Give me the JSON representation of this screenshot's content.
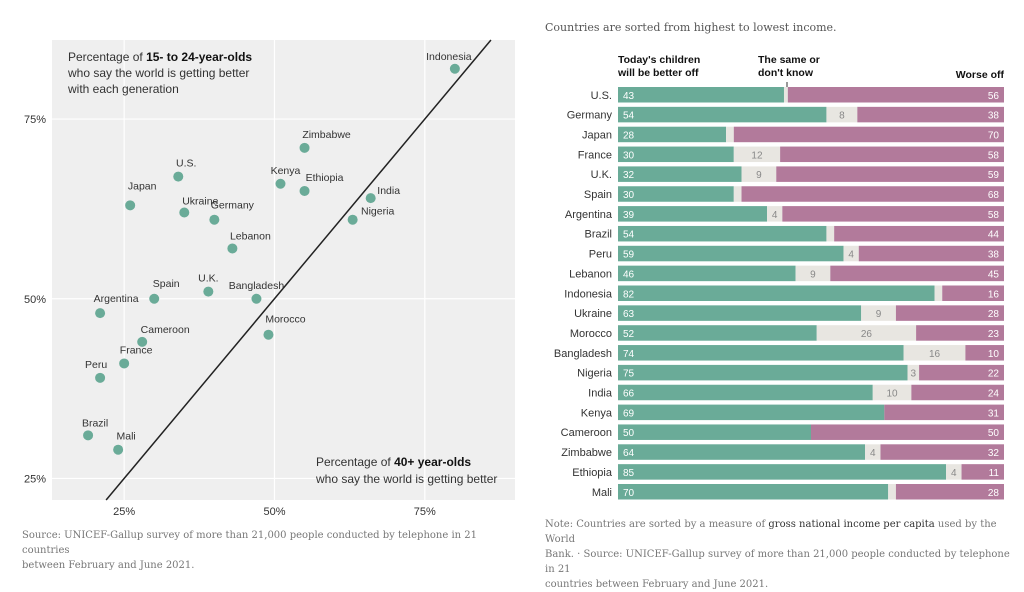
{
  "scatter": {
    "annotation_top": {
      "pre": "Percentage of ",
      "bold": "15- to 24-year-olds",
      "line2": "who say the world is getting better",
      "line3": "with each generation"
    },
    "annotation_bottom": {
      "pre": "Percentage of ",
      "bold": "40+ year-olds",
      "line2": "who say the world is getting better"
    },
    "source": {
      "line1": "Source: UNICEF-Gallup survey of more than 21,000 people conducted by telephone in 21 countries",
      "line2": "between February and June 2021."
    }
  },
  "bars": {
    "subtitle": "Countries are sorted from highest to lowest income.",
    "header_left": [
      "Today's children",
      "will be better off"
    ],
    "header_mid": [
      "The same or",
      "don't know"
    ],
    "header_right": "Worse off",
    "note": {
      "line1_pre": "Note: Countries are sorted by a measure of ",
      "line1_bold": "gross national income per capita",
      "line1_post": " used by the World",
      "line2": "Bank.  ·  Source: UNICEF-Gallup survey of more than 21,000 people conducted by telephone in 21",
      "line3": "countries between February and June 2021."
    }
  },
  "colors": {
    "better": "#6aab98",
    "same": "#e8e6e1",
    "worse": "#b27a9b",
    "panel": "#efefef",
    "dot": "#6aab98"
  },
  "chart_data": [
    {
      "type": "scatter",
      "xlabel": "Percentage of 40+ year-olds who say the world is getting better",
      "ylabel": "Percentage of 15- to 24-year-olds who say the world is getting better with each generation",
      "x_ticks": [
        "25%",
        "50%",
        "75%"
      ],
      "y_ticks": [
        "25%",
        "50%",
        "75%"
      ],
      "xlim": [
        13,
        90
      ],
      "ylim": [
        22,
        86
      ],
      "diagonal": "y = x",
      "grid": true,
      "points": [
        {
          "label": "Indonesia",
          "x": 80,
          "y": 82
        },
        {
          "label": "Zimbabwe",
          "x": 55,
          "y": 71
        },
        {
          "label": "U.S.",
          "x": 34,
          "y": 67
        },
        {
          "label": "Kenya",
          "x": 51,
          "y": 66
        },
        {
          "label": "Ethiopia",
          "x": 55,
          "y": 65
        },
        {
          "label": "India",
          "x": 66,
          "y": 64
        },
        {
          "label": "Japan",
          "x": 26,
          "y": 63
        },
        {
          "label": "Ukraine",
          "x": 35,
          "y": 62
        },
        {
          "label": "Germany",
          "x": 40,
          "y": 61
        },
        {
          "label": "Nigeria",
          "x": 63,
          "y": 61
        },
        {
          "label": "Lebanon",
          "x": 43,
          "y": 57
        },
        {
          "label": "U.K.",
          "x": 39,
          "y": 51
        },
        {
          "label": "Bangladesh",
          "x": 47,
          "y": 50
        },
        {
          "label": "Spain",
          "x": 30,
          "y": 50
        },
        {
          "label": "Argentina",
          "x": 21,
          "y": 48
        },
        {
          "label": "Morocco",
          "x": 49,
          "y": 45
        },
        {
          "label": "Cameroon",
          "x": 28,
          "y": 44
        },
        {
          "label": "France",
          "x": 25,
          "y": 41
        },
        {
          "label": "Peru",
          "x": 21,
          "y": 39
        },
        {
          "label": "Brazil",
          "x": 19,
          "y": 31
        },
        {
          "label": "Mali",
          "x": 24,
          "y": 29
        }
      ]
    },
    {
      "type": "bar",
      "stacked": true,
      "orientation": "horizontal",
      "categories": [
        "U.S.",
        "Germany",
        "Japan",
        "France",
        "U.K.",
        "Spain",
        "Argentina",
        "Brazil",
        "Peru",
        "Lebanon",
        "Indonesia",
        "Ukraine",
        "Morocco",
        "Bangladesh",
        "Nigeria",
        "India",
        "Kenya",
        "Cameroon",
        "Zimbabwe",
        "Ethiopia",
        "Mali"
      ],
      "series": [
        {
          "name": "Today's children will be better off",
          "values": [
            43,
            54,
            28,
            30,
            32,
            30,
            39,
            54,
            59,
            46,
            82,
            63,
            52,
            74,
            75,
            66,
            69,
            50,
            64,
            85,
            70
          ]
        },
        {
          "name": "The same or don't know",
          "values": [
            1,
            8,
            2,
            12,
            9,
            2,
            4,
            2,
            4,
            9,
            2,
            9,
            26,
            16,
            3,
            10,
            0,
            0,
            4,
            4,
            2
          ]
        },
        {
          "name": "Worse off",
          "values": [
            56,
            38,
            70,
            58,
            59,
            68,
            58,
            44,
            38,
            45,
            16,
            28,
            23,
            10,
            22,
            24,
            31,
            50,
            32,
            11,
            28
          ]
        }
      ],
      "value_labels": {
        "better": [
          "43",
          "54",
          "28",
          "30",
          "32",
          "30",
          "39",
          "54",
          "59",
          "46",
          "82",
          "63",
          "52",
          "74",
          "75",
          "66",
          "69",
          "50",
          "64",
          "85",
          "70"
        ],
        "same": [
          "",
          "8",
          "",
          "12",
          "9",
          "",
          "4",
          "",
          "4",
          "9",
          "",
          "9",
          "26",
          "16",
          "3",
          "10",
          "",
          "",
          "4",
          "4",
          ""
        ],
        "worse": [
          "56",
          "38",
          "70",
          "58",
          "59",
          "68",
          "58",
          "44",
          "38",
          "45",
          "16",
          "28",
          "23",
          "10",
          "22",
          "24",
          "31",
          "50",
          "32",
          "11",
          "28"
        ]
      }
    }
  ]
}
